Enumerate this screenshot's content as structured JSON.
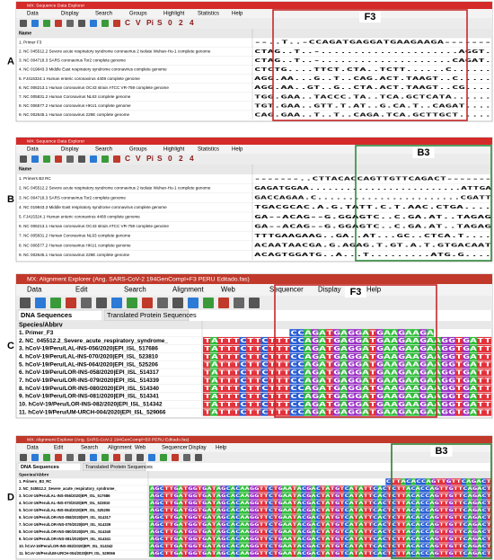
{
  "panels": [
    {
      "label": "A",
      "window_title": "MX: Sequence Data Explorer",
      "menu": [
        "Data",
        "Display",
        "Search",
        "Groups",
        "Highlight",
        "Statistics",
        "Help"
      ],
      "toolbar": [
        "C",
        "V",
        "Pi",
        "S",
        "0",
        "2",
        "4"
      ],
      "header": "Name",
      "box_label": "F3",
      "rows": [
        {
          "name": "1. Primer F3",
          "seq": "--..T..-CCAGATGAGGATGAAGAAGA-------"
        },
        {
          "name": "2. NC 045512.2 Severe acute respiratory syndrome coronavirus 2 isolate Wuhan-Hu-1 complete genome",
          "seq": "CTAG..T..-.....................AGGT."
        },
        {
          "name": "3. NC 004718.3 SARS coronavirus Tor2 complete genome",
          "seq": "CTAG..T..-....................CAGAT."
        },
        {
          "name": "4. NC 019843.3 Middle East respiratory syndrome coronavirus complete genome",
          "seq": "CTCTG....TTCT.CTA..TCTT......C......"
        },
        {
          "name": "5. FJ415324.1 Human enteric coronavirus 4408 complete genome",
          "seq": "AGG.AA...G..T..CAG.ACT.TAAGT..C....."
        },
        {
          "name": "6. NC 006213.1 Human coronavirus OC43 strain ATCC VR-759 complete genome",
          "seq": "AGG.AA..GT..G..CTA.ACT.TAAGT..CG...."
        },
        {
          "name": "7. NC 005831.2 Human Coronavirus NL63 complete genome",
          "seq": "TGG.GAA..TACCC.TA..TCA.GCTCATA......"
        },
        {
          "name": "8. NC 006577.2 Human coronavirus HKU1 complete genome",
          "seq": "TGT.GAA..GTT.T.AT..G.CA.T..CAGAT...."
        },
        {
          "name": "9. NC 002645.1 Human coronavirus 229E complete genome",
          "seq": "CAG.GAA..T..T..CAGA.TCA.GCTTGCT....."
        }
      ]
    },
    {
      "label": "B",
      "window_title": "MX: Sequence Data Explorer",
      "menu": [
        "Data",
        "Display",
        "Search",
        "Groups",
        "Highlight",
        "Statistics",
        "Help"
      ],
      "toolbar": [
        "C",
        "V",
        "Pi",
        "S",
        "0",
        "2",
        "4"
      ],
      "header": "Name",
      "box_label": "B3",
      "rows": [
        {
          "name": "1. Primers B3 RC",
          "seq": "-------..CTTACACCAGTTGTTCAGACT-------"
        },
        {
          "name": "2. NC 045512.2 Severe acute respiratory syndrome coronavirus 2 isolate Wuhan-Hu-1 complete genome",
          "seq": "GAGATGGAA.........................ATTGA"
        },
        {
          "name": "3. NC 004718.3 SARS coronavirus Tor2 complete genome",
          "seq": "GACCAGAA.C.......................CGATT"
        },
        {
          "name": "4. NC 019843.3 Middle East respiratory syndrome coronavirus complete genome",
          "seq": "TGACGCAC.A.G.TATT.C.T.AAC.CTGA...."
        },
        {
          "name": "5. FJ415324.1 Human enteric coronavirus 4408 complete genome",
          "seq": "GA--ACAG--G.GGAGTC..C.GA.AT..TAGAG"
        },
        {
          "name": "6. NC 006213.1 Human coronavirus OC43 strain ATCC VR-759 complete genome",
          "seq": "GA--ACAG--G.GGAGTC..C.GA.AT..TAGAG"
        },
        {
          "name": "7. NC 005831.2 Human Coronavirus NL63 complete genome",
          "seq": "TTTGAAGAAG..GA..AT...GC..CTCA.T...."
        },
        {
          "name": "8. NC 006577.2 Human coronavirus HKU1 complete genome",
          "seq": "ACAATAACGA.G.AGAG.T.GT.A.T.GTGACAAT"
        },
        {
          "name": "9. NC 002645.1 Human coronavirus 229E complete genome",
          "seq": "ACAGTGGATG..A...T.........ATG.G...."
        }
      ]
    },
    {
      "label": "C",
      "window_title": "MX: Alignment Explorer (Ang. SARS-CoV-2 194GenCompl+F3 PERU Editado.fas)",
      "menu": [
        "Data",
        "Edit",
        "Search",
        "Alignment",
        "Web",
        "Sequencer",
        "Display",
        "Help"
      ],
      "tabs": [
        "DNA Sequences",
        "Translated Protein Sequences"
      ],
      "header": "Species/Abbrv",
      "box_label": "F3",
      "rows": [
        {
          "name": "1. Primer_F3",
          "seq": "------------CCAGATGAGGATGAAGAAGA--------"
        },
        {
          "name": "2. NC_045512.2_Severe_acute_respiratory_syndrome_",
          "seq": "TATTTCTTCTTTCCAGATGAGGATGAAGAAGAAGGTGATT"
        },
        {
          "name": "3. hCoV-19/Peru/LAL-INS-056/2020|EPI_ISL_517686",
          "seq": "TATTTCTTCTTTCCAGATGAGGATGAAGAAGAAGGTGATT"
        },
        {
          "name": "4. hCoV-19/Peru/LAL-INS-070/2020|EPI_ISL_523810",
          "seq": "TATTTCTTCTTTCCAGATGAGGATGAAGAAGAAGGTGATT"
        },
        {
          "name": "5. hCoV-19/Peru/LAL-INS-064/2020|EPI_ISL_525206",
          "seq": "TATTTCTTCTTTCCAGATGAGGATGAAGAAGAAGGTGATT"
        },
        {
          "name": "6. hCoV-19/Peru/LOR-INS-058/2020|EPI_ISL_514317",
          "seq": "TATTTCTTCTTTCCAGATGAGGATGAAGAAGAAGGTGATT"
        },
        {
          "name": "7. hCoV-19/Peru/LOR-INS-079/2020|EPI_ISL_514339",
          "seq": "TATTTCTTCTTTCCAGATGAGGATGAAGAAGAAGGTGATT"
        },
        {
          "name": "8. hCoV-19/Peru/LOR-INS-080/2020|EPI_ISL_514340",
          "seq": "TATTTCTTCTTTCCAGATGAGGATGAAGAAGAAGGTGATT"
        },
        {
          "name": "9. hCoV-19/Peru/LOR-INS-081/2020|EPI_ISL_514341",
          "seq": "TATTTCTTCTTTCCAGATGAGGATGAAGAAGAAGGTGATT"
        },
        {
          "name": "10. hCoV-19/Peru/LOR-INS-082/2020|EPI_ISL_514342",
          "seq": "TATTTCTTCTTTCCAGATGAGGATGAAGAAGAAGGTGATT"
        },
        {
          "name": "11. hCoV-19/Peru/UM-URCH-004/2020|EPI_ISL_529066",
          "seq": "TATTTCTTCTTTCCAGATGAGGATGAAGAAGAAGGTGATT"
        }
      ]
    },
    {
      "label": "D",
      "window_title": "MX: Alignment Explorer (Ang. SARS-CoV-2 194GenCompl+B3 PERU Editado.fas)",
      "menu": [
        "Data",
        "Edit",
        "Search",
        "Alignment",
        "Web",
        "Sequencer",
        "Display",
        "Help"
      ],
      "tabs": [
        "DNA Sequences",
        "Translated Protein Sequences"
      ],
      "header": "Species/Abbrv",
      "box_label": "B3",
      "rows": [
        {
          "name": "1. Primers_B3_RC",
          "seq": "-----------------------------------------------CTTACACCAGTTGTTCAGACT"
        },
        {
          "name": "2. NC_045512.2_Severe_acute_respiratory_syndrome_",
          "seq": "AGCTTGATGGTGATAGCACAAGGTTCTGAATACGACTATGTCATATTCACTCTTACACCAGTTGTTCAGACT"
        },
        {
          "name": "3. hCoV-19/Peru/LAL-INS-056/2020|EPI_ISL_517686",
          "seq": "AGCTTGATGGTGATAGCACAAGGTTCTGAATACGACTATGTCATATTCACTCTTACACCAGTTGTTCAGACT"
        },
        {
          "name": "4. hCoV-19/Peru/LAL-INS-070/2020|EPI_ISL_523810",
          "seq": "AGCTTGATGGTGATAGCACAAGGTTCTGAATACGACTATGTCATATTCACTCTTACACCAGTTGTTCAGACT"
        },
        {
          "name": "5. hCoV-19/Peru/LAL-INS-064/2020|EPI_ISL_525206",
          "seq": "AGCTTGATGGTGATAGCACAAGGTTCTGAATACGACTATGTCATATTCACTCTTACACCAGTTGTTCAGACT"
        },
        {
          "name": "6. hCoV-19/Peru/LOR-INS-058/2020|EPI_ISL_514317",
          "seq": "AGCTTGATGGTGATAGCACAAGGTTCTGAATACGACTATGTCATATTCACTCTTACACCAGTTGTTCAGACT"
        },
        {
          "name": "7. hCoV-19/Peru/LOR-INS-079/2020|EPI_ISL_514339",
          "seq": "AGCTTGATGGTGATAGCACAAGGTTCTGAATACGACTATGTCATATTCACTCTTACACCAGTTGTTCAGACT"
        },
        {
          "name": "8. hCoV-19/Peru/LOR-INS-080/2020|EPI_ISL_514340",
          "seq": "AGCTTGATGGTGATAGCACAAGGTTCTGAATACGACTATGTCATATTCACTCTTACACCAGTTGTTCAGACT"
        },
        {
          "name": "9. hCoV-19/Peru/LOR-INS-081/2020|EPI_ISL_514341",
          "seq": "AGCTTGATGGTGATAGCACAAGGTTCTGAATACGACTATGTCATATTCACTCTTACACCAGTTGTTCAGACT"
        },
        {
          "name": "10. hCoV-19/Peru/LOR-INS-082/2020|EPI_ISL_514342",
          "seq": "AGCTTGATGGTGATAGCACAAGGTTCTGAATACGACTATGTCATATTCACTCTTACACCAGTTGTTCAGACT"
        },
        {
          "name": "11. hCoV-19/Peru/UM-URCH-004/2020|EPI_ISL_529066",
          "seq": "AGCTTGATGGTGATAGCACAAGGTTCTGAATACGACTATGTCATATTCACTCTTACACCAGTTGTTCAGACT"
        }
      ]
    }
  ]
}
